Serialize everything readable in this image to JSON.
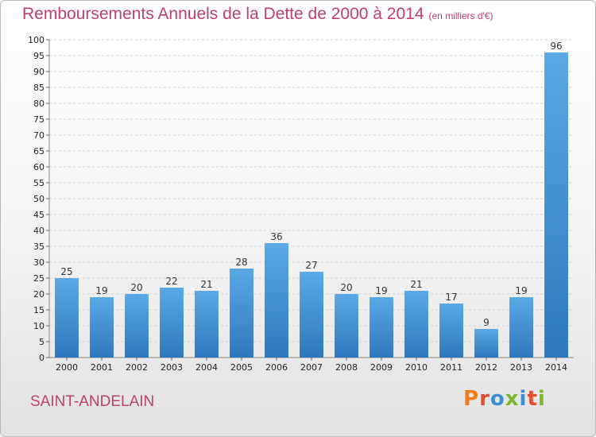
{
  "header": {
    "title": "Remboursements Annuels de la Dette de 2000 à 2014",
    "subtitle": "(en milliers d'€)"
  },
  "footer": {
    "commune": "SAINT-ANDELAIN",
    "logo_text": "Proxiti",
    "logo_colors": [
      "#f07d1a",
      "#e84a2e",
      "#3a8fd6",
      "#78b82a",
      "#3a8fd6",
      "#e84a2e",
      "#78b82a"
    ]
  },
  "colors": {
    "bar_light": "#5aa9e6",
    "bar_dark": "#2d78bd",
    "grid": "#cfcfcf",
    "title": "#c0406a"
  },
  "chart_data": {
    "type": "bar",
    "title": "Remboursements Annuels de la Dette de 2000 à 2014",
    "subtitle": "(en milliers d'€)",
    "xlabel": "",
    "ylabel": "",
    "ylim": [
      0,
      100
    ],
    "ytick_step": 5,
    "grid": true,
    "categories": [
      "2000",
      "2001",
      "2002",
      "2003",
      "2004",
      "2005",
      "2006",
      "2007",
      "2008",
      "2009",
      "2010",
      "2011",
      "2012",
      "2013",
      "2014"
    ],
    "values": [
      25,
      19,
      20,
      22,
      21,
      28,
      36,
      27,
      20,
      19,
      21,
      17,
      9,
      19,
      96
    ]
  }
}
